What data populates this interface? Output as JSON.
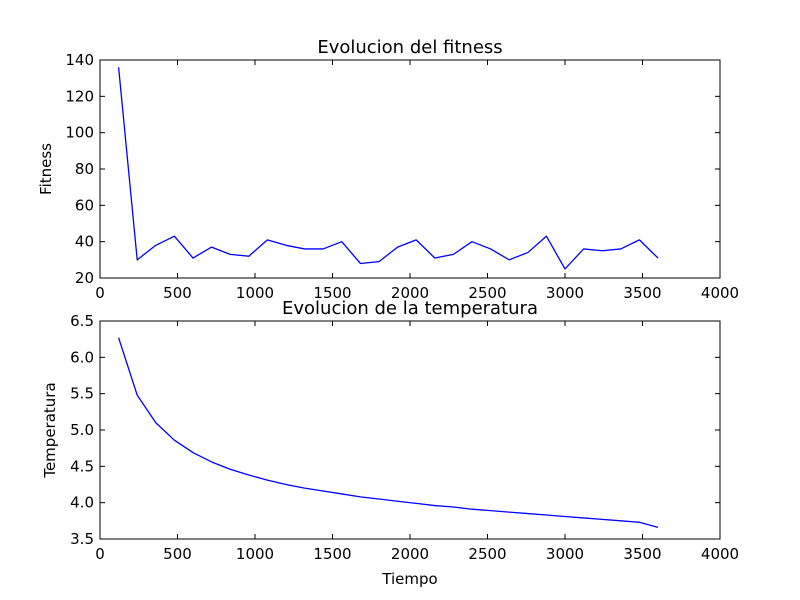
{
  "chart_data": [
    {
      "type": "line",
      "title": "Evolucion del fitness",
      "xlabel": "",
      "ylabel": "Fitness",
      "xlim": [
        0,
        4000
      ],
      "ylim": [
        20,
        140
      ],
      "xticks": [
        "0",
        "500",
        "1000",
        "1500",
        "2000",
        "2500",
        "3000",
        "3500",
        "4000"
      ],
      "yticks": [
        "20",
        "40",
        "60",
        "80",
        "100",
        "120",
        "140"
      ],
      "grid": false,
      "series": [
        {
          "color": "#0000ff",
          "x": [
            120,
            240,
            360,
            480,
            600,
            720,
            840,
            960,
            1080,
            1200,
            1320,
            1440,
            1560,
            1680,
            1800,
            1920,
            2040,
            2160,
            2280,
            2400,
            2520,
            2640,
            2760,
            2880,
            3000,
            3120,
            3240,
            3360,
            3480,
            3600
          ],
          "y": [
            136,
            30,
            38,
            43,
            31,
            37,
            33,
            32,
            41,
            38,
            36,
            36,
            40,
            28,
            29,
            37,
            41,
            31,
            33,
            40,
            36,
            30,
            34,
            43,
            25,
            36,
            35,
            36,
            41,
            31
          ]
        }
      ]
    },
    {
      "type": "line",
      "title": "Evolucion de la temperatura",
      "xlabel": "Tiempo",
      "ylabel": "Temperatura",
      "xlim": [
        0,
        4000
      ],
      "ylim": [
        3.5,
        6.5
      ],
      "xticks": [
        "0",
        "500",
        "1000",
        "1500",
        "2000",
        "2500",
        "3000",
        "3500",
        "4000"
      ],
      "yticks": [
        "3.5",
        "4.0",
        "4.5",
        "5.0",
        "5.5",
        "6.0",
        "6.5"
      ],
      "grid": false,
      "series": [
        {
          "color": "#0000ff",
          "x": [
            120,
            240,
            360,
            480,
            600,
            720,
            840,
            960,
            1080,
            1200,
            1320,
            1440,
            1560,
            1680,
            1800,
            1920,
            2040,
            2160,
            2280,
            2400,
            2520,
            2640,
            2760,
            2880,
            3000,
            3120,
            3240,
            3360,
            3480,
            3600
          ],
          "y": [
            6.27,
            5.48,
            5.1,
            4.86,
            4.69,
            4.56,
            4.46,
            4.38,
            4.31,
            4.25,
            4.2,
            4.16,
            4.12,
            4.08,
            4.05,
            4.02,
            3.99,
            3.96,
            3.94,
            3.91,
            3.89,
            3.87,
            3.85,
            3.83,
            3.81,
            3.79,
            3.77,
            3.75,
            3.73,
            3.66
          ]
        }
      ]
    }
  ]
}
